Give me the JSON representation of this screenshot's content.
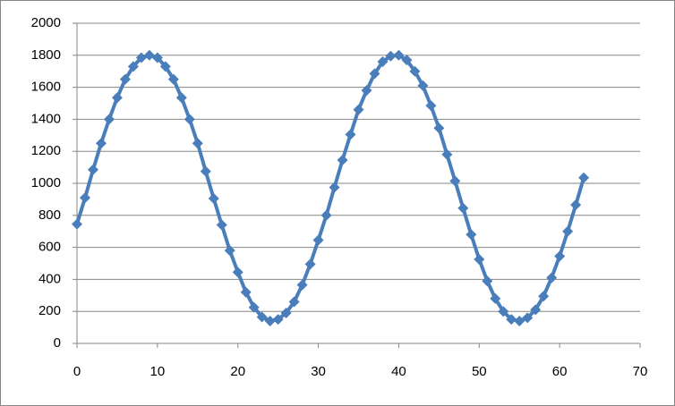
{
  "chart_data": {
    "type": "line",
    "marker": "diamond",
    "grid": true,
    "x": [
      0,
      1,
      2,
      3,
      4,
      5,
      6,
      7,
      8,
      9,
      10,
      11,
      12,
      13,
      14,
      15,
      16,
      17,
      18,
      19,
      20,
      21,
      22,
      23,
      24,
      25,
      26,
      27,
      28,
      29,
      30,
      31,
      32,
      33,
      34,
      35,
      36,
      37,
      38,
      39,
      40,
      41,
      42,
      43,
      44,
      45,
      46,
      47,
      48,
      49,
      50,
      51,
      52,
      53,
      54,
      55,
      56,
      57,
      58,
      59,
      60,
      61,
      62,
      63
    ],
    "series": [
      {
        "color": "#4a7ebb",
        "values": [
          745,
          910,
          1085,
          1250,
          1400,
          1535,
          1650,
          1730,
          1785,
          1800,
          1785,
          1730,
          1650,
          1535,
          1400,
          1250,
          1075,
          905,
          740,
          580,
          445,
          320,
          225,
          165,
          140,
          150,
          190,
          260,
          365,
          495,
          645,
          800,
          975,
          1145,
          1305,
          1460,
          1580,
          1685,
          1760,
          1795,
          1800,
          1770,
          1700,
          1610,
          1485,
          1345,
          1180,
          1015,
          845,
          680,
          525,
          390,
          280,
          200,
          150,
          140,
          160,
          210,
          295,
          410,
          545,
          700,
          865,
          1035
        ]
      }
    ],
    "xlim": [
      0,
      70
    ],
    "xticks": [
      0,
      10,
      20,
      30,
      40,
      50,
      60,
      70
    ],
    "ylim": [
      0,
      2000
    ],
    "yticks": [
      0,
      200,
      400,
      600,
      800,
      1000,
      1200,
      1400,
      1600,
      1800,
      2000
    ]
  }
}
